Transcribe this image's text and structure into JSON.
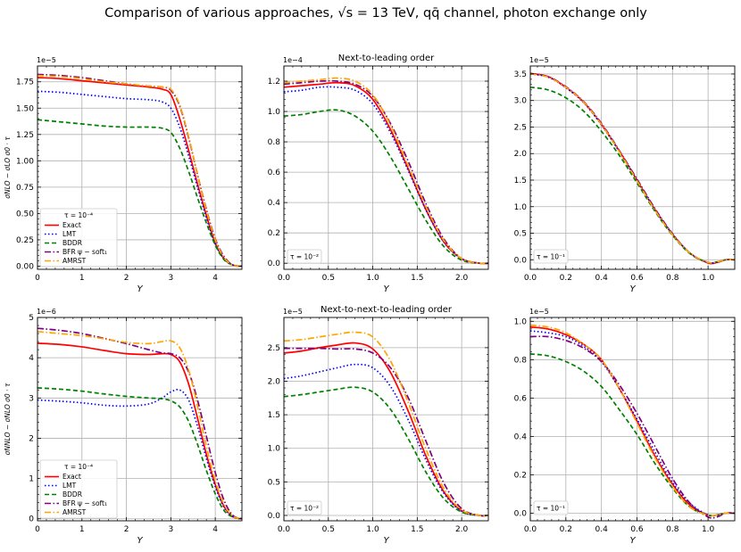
{
  "figure": {
    "suptitle": "Comparison of various approaches, √s = 13 TeV, qq̄ channel, photon exchange only",
    "row_titles": [
      "Next-to-leading order",
      "Next-to-next-to-leading order"
    ],
    "ylabels": [
      "σNLO − σLO σ0 · τ",
      "σNNLO − σNLO σ0 · τ"
    ]
  },
  "series_styles": [
    {
      "name": "Exact",
      "color": "#ff0000",
      "dash": ""
    },
    {
      "name": "LMT",
      "color": "#0000ff",
      "dash": "1.5,2.5"
    },
    {
      "name": "BDDR",
      "color": "#008000",
      "dash": "5,3"
    },
    {
      "name": "BFR ψ − soft₁",
      "color": "#800080",
      "dash": "7,2.5,1.5,2.5"
    },
    {
      "name": "AMRST",
      "color": "#ffa500",
      "dash": "7,2.5,1.5,2.5"
    }
  ],
  "chart_data": [
    {
      "type": "line",
      "row": 0,
      "col": 0,
      "title": "",
      "multiplier": "1e−5",
      "xlabel": "Y",
      "ylabel": "σNLO − σLO σ0 · τ",
      "legend_title": "τ = 10⁻⁴",
      "show_series_legend": true,
      "xlim": [
        0,
        4.6
      ],
      "ylim": [
        -0.03,
        1.9
      ],
      "xticks": [
        0,
        1,
        2,
        3,
        4
      ],
      "yticks": [
        0,
        0.25,
        0.5,
        0.75,
        1,
        1.25,
        1.5,
        1.75
      ],
      "ytick_labels": [
        "0.00",
        "0.25",
        "0.50",
        "0.75",
        "1.00",
        "1.25",
        "1.50",
        "1.75"
      ],
      "x": [
        0,
        0.5,
        1,
        1.5,
        2,
        2.5,
        2.8,
        3,
        3.2,
        3.4,
        3.6,
        3.8,
        4,
        4.2,
        4.4,
        4.6
      ],
      "series": [
        {
          "name": "Exact",
          "values": [
            1.79,
            1.78,
            1.76,
            1.74,
            1.72,
            1.7,
            1.68,
            1.63,
            1.4,
            1.1,
            0.78,
            0.48,
            0.22,
            0.07,
            0.01,
            0
          ]
        },
        {
          "name": "LMT",
          "values": [
            1.66,
            1.65,
            1.63,
            1.61,
            1.59,
            1.58,
            1.56,
            1.5,
            1.32,
            1.05,
            0.75,
            0.46,
            0.21,
            0.07,
            0.01,
            0
          ]
        },
        {
          "name": "BDDR",
          "values": [
            1.39,
            1.37,
            1.35,
            1.33,
            1.32,
            1.32,
            1.31,
            1.27,
            1.12,
            0.9,
            0.65,
            0.41,
            0.2,
            0.06,
            0.01,
            0
          ]
        },
        {
          "name": "BFR ψ − soft₁",
          "values": [
            1.82,
            1.81,
            1.79,
            1.76,
            1.73,
            1.71,
            1.7,
            1.67,
            1.52,
            1.22,
            0.87,
            0.54,
            0.26,
            0.09,
            0.01,
            0
          ]
        },
        {
          "name": "AMRST",
          "values": [
            1.81,
            1.8,
            1.78,
            1.75,
            1.73,
            1.71,
            1.7,
            1.68,
            1.53,
            1.23,
            0.87,
            0.53,
            0.25,
            0.08,
            0.01,
            0
          ]
        }
      ]
    },
    {
      "type": "line",
      "row": 0,
      "col": 1,
      "title": "Next-to-leading order",
      "multiplier": "1e−4",
      "xlabel": "Y",
      "ylabel": "",
      "legend_title": "τ = 10⁻²",
      "show_series_legend": false,
      "xlim": [
        0,
        2.3
      ],
      "ylim": [
        -0.04,
        1.3
      ],
      "xticks": [
        0,
        0.5,
        1,
        1.5,
        2
      ],
      "xtick_labels": [
        "0.0",
        "0.5",
        "1.0",
        "1.5",
        "2.0"
      ],
      "yticks": [
        0,
        0.2,
        0.4,
        0.6,
        0.8,
        1,
        1.2
      ],
      "ytick_labels": [
        "0.0",
        "0.2",
        "0.4",
        "0.6",
        "0.8",
        "1.0",
        "1.2"
      ],
      "x": [
        0,
        0.2,
        0.4,
        0.6,
        0.8,
        1,
        1.2,
        1.4,
        1.6,
        1.8,
        2,
        2.2,
        2.3
      ],
      "series": [
        {
          "name": "Exact",
          "values": [
            1.16,
            1.17,
            1.18,
            1.19,
            1.17,
            1.08,
            0.88,
            0.62,
            0.35,
            0.14,
            0.03,
            0,
            0
          ]
        },
        {
          "name": "LMT",
          "values": [
            1.13,
            1.14,
            1.16,
            1.16,
            1.14,
            1.05,
            0.86,
            0.61,
            0.35,
            0.14,
            0.03,
            0,
            0
          ]
        },
        {
          "name": "BDDR",
          "values": [
            0.97,
            0.98,
            1,
            1.01,
            0.97,
            0.87,
            0.7,
            0.49,
            0.28,
            0.11,
            0.02,
            0,
            0
          ]
        },
        {
          "name": "BFR ψ − soft₁",
          "values": [
            1.18,
            1.19,
            1.2,
            1.2,
            1.18,
            1.1,
            0.92,
            0.67,
            0.39,
            0.16,
            0.03,
            0,
            0
          ]
        },
        {
          "name": "AMRST",
          "values": [
            1.19,
            1.2,
            1.21,
            1.22,
            1.2,
            1.11,
            0.91,
            0.64,
            0.37,
            0.15,
            0.03,
            0,
            0
          ]
        }
      ]
    },
    {
      "type": "line",
      "row": 0,
      "col": 2,
      "title": "",
      "multiplier": "1e−5",
      "xlabel": "Y",
      "ylabel": "",
      "legend_title": "τ = 10⁻¹",
      "show_series_legend": false,
      "xlim": [
        0,
        1.15
      ],
      "ylim": [
        -0.18,
        3.65
      ],
      "xticks": [
        0,
        0.2,
        0.4,
        0.6,
        0.8,
        1
      ],
      "xtick_labels": [
        "0.0",
        "0.2",
        "0.4",
        "0.6",
        "0.8",
        "1.0"
      ],
      "yticks": [
        0,
        0.5,
        1,
        1.5,
        2,
        2.5,
        3,
        3.5
      ],
      "ytick_labels": [
        "0.0",
        "0.5",
        "1.0",
        "1.5",
        "2.0",
        "2.5",
        "3.0",
        "3.5"
      ],
      "x": [
        0,
        0.1,
        0.2,
        0.3,
        0.4,
        0.5,
        0.6,
        0.7,
        0.8,
        0.9,
        1,
        1.05,
        1.1,
        1.15
      ],
      "series": [
        {
          "name": "Exact",
          "values": [
            3.51,
            3.45,
            3.25,
            2.97,
            2.55,
            2.05,
            1.5,
            0.95,
            0.48,
            0.12,
            -0.06,
            -0.05,
            0,
            0
          ]
        },
        {
          "name": "LMT",
          "values": [
            3.5,
            3.44,
            3.24,
            2.96,
            2.54,
            2.04,
            1.5,
            0.95,
            0.48,
            0.12,
            -0.05,
            -0.04,
            0,
            0
          ]
        },
        {
          "name": "BDDR",
          "values": [
            3.25,
            3.2,
            3.05,
            2.8,
            2.42,
            1.97,
            1.45,
            0.92,
            0.46,
            0.11,
            -0.05,
            -0.04,
            0,
            0
          ]
        },
        {
          "name": "BFR ψ − soft₁",
          "values": [
            3.51,
            3.45,
            3.26,
            2.98,
            2.57,
            2.06,
            1.52,
            0.97,
            0.49,
            0.12,
            -0.06,
            -0.05,
            0,
            0
          ]
        },
        {
          "name": "AMRST",
          "values": [
            3.5,
            3.44,
            3.25,
            2.97,
            2.55,
            2.04,
            1.49,
            0.94,
            0.47,
            0.12,
            -0.05,
            -0.04,
            0,
            0
          ]
        }
      ]
    },
    {
      "type": "line",
      "row": 1,
      "col": 0,
      "title": "",
      "multiplier": "1e−6",
      "xlabel": "Y",
      "ylabel": "σNNLO − σNLO σ0 · τ",
      "legend_title": "τ = 10⁻⁴",
      "show_series_legend": true,
      "xlim": [
        0,
        4.6
      ],
      "ylim": [
        -0.05,
        5
      ],
      "xticks": [
        0,
        1,
        2,
        3,
        4
      ],
      "yticks": [
        0,
        1,
        2,
        3,
        4,
        5
      ],
      "ytick_labels": [
        "0",
        "1",
        "2",
        "3",
        "4",
        "5"
      ],
      "x": [
        0,
        0.5,
        1,
        1.5,
        2,
        2.5,
        2.8,
        3,
        3.2,
        3.4,
        3.6,
        3.8,
        4,
        4.2,
        4.4,
        4.6
      ],
      "series": [
        {
          "name": "Exact",
          "values": [
            4.36,
            4.33,
            4.27,
            4.18,
            4.1,
            4.08,
            4.1,
            4.08,
            3.9,
            3.35,
            2.5,
            1.6,
            0.85,
            0.3,
            0.05,
            0
          ]
        },
        {
          "name": "LMT",
          "values": [
            2.95,
            2.92,
            2.88,
            2.82,
            2.8,
            2.85,
            3,
            3.15,
            3.2,
            2.95,
            2.3,
            1.5,
            0.8,
            0.28,
            0.05,
            0
          ]
        },
        {
          "name": "BDDR",
          "values": [
            3.25,
            3.22,
            3.17,
            3.1,
            3.04,
            3,
            2.98,
            2.93,
            2.78,
            2.42,
            1.85,
            1.2,
            0.62,
            0.2,
            0.04,
            0
          ]
        },
        {
          "name": "BFR ψ − soft₁",
          "values": [
            4.73,
            4.68,
            4.6,
            4.48,
            4.35,
            4.2,
            4.12,
            4.1,
            4,
            3.65,
            2.95,
            2.05,
            1.15,
            0.45,
            0.08,
            0
          ]
        },
        {
          "name": "AMRST",
          "values": [
            4.65,
            4.6,
            4.55,
            4.47,
            4.38,
            4.35,
            4.4,
            4.42,
            4.25,
            3.7,
            2.8,
            1.8,
            0.95,
            0.35,
            0.06,
            0
          ]
        }
      ]
    },
    {
      "type": "line",
      "row": 1,
      "col": 1,
      "title": "Next-to-next-to-leading order",
      "multiplier": "1e−5",
      "xlabel": "Y",
      "ylabel": "",
      "legend_title": "τ = 10⁻²",
      "show_series_legend": false,
      "xlim": [
        0,
        2.3
      ],
      "ylim": [
        -0.08,
        2.95
      ],
      "xticks": [
        0,
        0.5,
        1,
        1.5,
        2
      ],
      "xtick_labels": [
        "0.0",
        "0.5",
        "1.0",
        "1.5",
        "2.0"
      ],
      "yticks": [
        0,
        0.5,
        1,
        1.5,
        2,
        2.5
      ],
      "ytick_labels": [
        "0.0",
        "0.5",
        "1.0",
        "1.5",
        "2.0",
        "2.5"
      ],
      "x": [
        0,
        0.2,
        0.4,
        0.6,
        0.8,
        1,
        1.2,
        1.4,
        1.6,
        1.8,
        2,
        2.2,
        2.3
      ],
      "series": [
        {
          "name": "Exact",
          "values": [
            2.42,
            2.45,
            2.5,
            2.54,
            2.57,
            2.48,
            2.13,
            1.55,
            0.88,
            0.35,
            0.07,
            0,
            0
          ]
        },
        {
          "name": "LMT",
          "values": [
            2.04,
            2.08,
            2.14,
            2.2,
            2.25,
            2.2,
            1.92,
            1.42,
            0.82,
            0.33,
            0.06,
            0,
            0
          ]
        },
        {
          "name": "BDDR",
          "values": [
            1.77,
            1.8,
            1.84,
            1.88,
            1.91,
            1.84,
            1.58,
            1.14,
            0.64,
            0.25,
            0.05,
            0,
            0
          ]
        },
        {
          "name": "BFR ψ − soft₁",
          "values": [
            2.49,
            2.49,
            2.49,
            2.48,
            2.48,
            2.42,
            2.2,
            1.75,
            1.1,
            0.48,
            0.1,
            0,
            0
          ]
        },
        {
          "name": "AMRST",
          "values": [
            2.6,
            2.62,
            2.66,
            2.7,
            2.73,
            2.66,
            2.3,
            1.68,
            0.98,
            0.4,
            0.08,
            0,
            0
          ]
        }
      ]
    },
    {
      "type": "line",
      "row": 1,
      "col": 2,
      "title": "",
      "multiplier": "1e−5",
      "xlabel": "Y",
      "ylabel": "",
      "legend_title": "τ = 10⁻¹",
      "show_series_legend": false,
      "xlim": [
        0,
        1.15
      ],
      "ylim": [
        -0.04,
        1.02
      ],
      "xticks": [
        0,
        0.2,
        0.4,
        0.6,
        0.8,
        1
      ],
      "xtick_labels": [
        "0.0",
        "0.2",
        "0.4",
        "0.6",
        "0.8",
        "1.0"
      ],
      "yticks": [
        0,
        0.2,
        0.4,
        0.6,
        0.8,
        1
      ],
      "ytick_labels": [
        "0.0",
        "0.2",
        "0.4",
        "0.6",
        "0.8",
        "1.0"
      ],
      "x": [
        0,
        0.1,
        0.2,
        0.3,
        0.4,
        0.5,
        0.6,
        0.7,
        0.8,
        0.9,
        1,
        1.05,
        1.1,
        1.15
      ],
      "series": [
        {
          "name": "Exact",
          "values": [
            0.97,
            0.96,
            0.93,
            0.88,
            0.8,
            0.65,
            0.48,
            0.3,
            0.15,
            0.04,
            -0.01,
            -0.01,
            0,
            0
          ]
        },
        {
          "name": "LMT",
          "values": [
            0.95,
            0.94,
            0.92,
            0.87,
            0.79,
            0.65,
            0.49,
            0.32,
            0.16,
            0.05,
            -0.01,
            -0.01,
            0,
            0
          ]
        },
        {
          "name": "BDDR",
          "values": [
            0.83,
            0.82,
            0.79,
            0.74,
            0.66,
            0.54,
            0.41,
            0.26,
            0.13,
            0.03,
            -0.01,
            -0.01,
            0,
            0
          ]
        },
        {
          "name": "BFR ψ − soft₁",
          "values": [
            0.92,
            0.92,
            0.9,
            0.86,
            0.79,
            0.67,
            0.52,
            0.35,
            0.18,
            0.05,
            -0.02,
            -0.02,
            0,
            0
          ]
        },
        {
          "name": "AMRST",
          "values": [
            0.98,
            0.97,
            0.94,
            0.88,
            0.8,
            0.65,
            0.47,
            0.29,
            0.14,
            0.03,
            -0.01,
            -0.01,
            0,
            0
          ]
        }
      ]
    }
  ]
}
